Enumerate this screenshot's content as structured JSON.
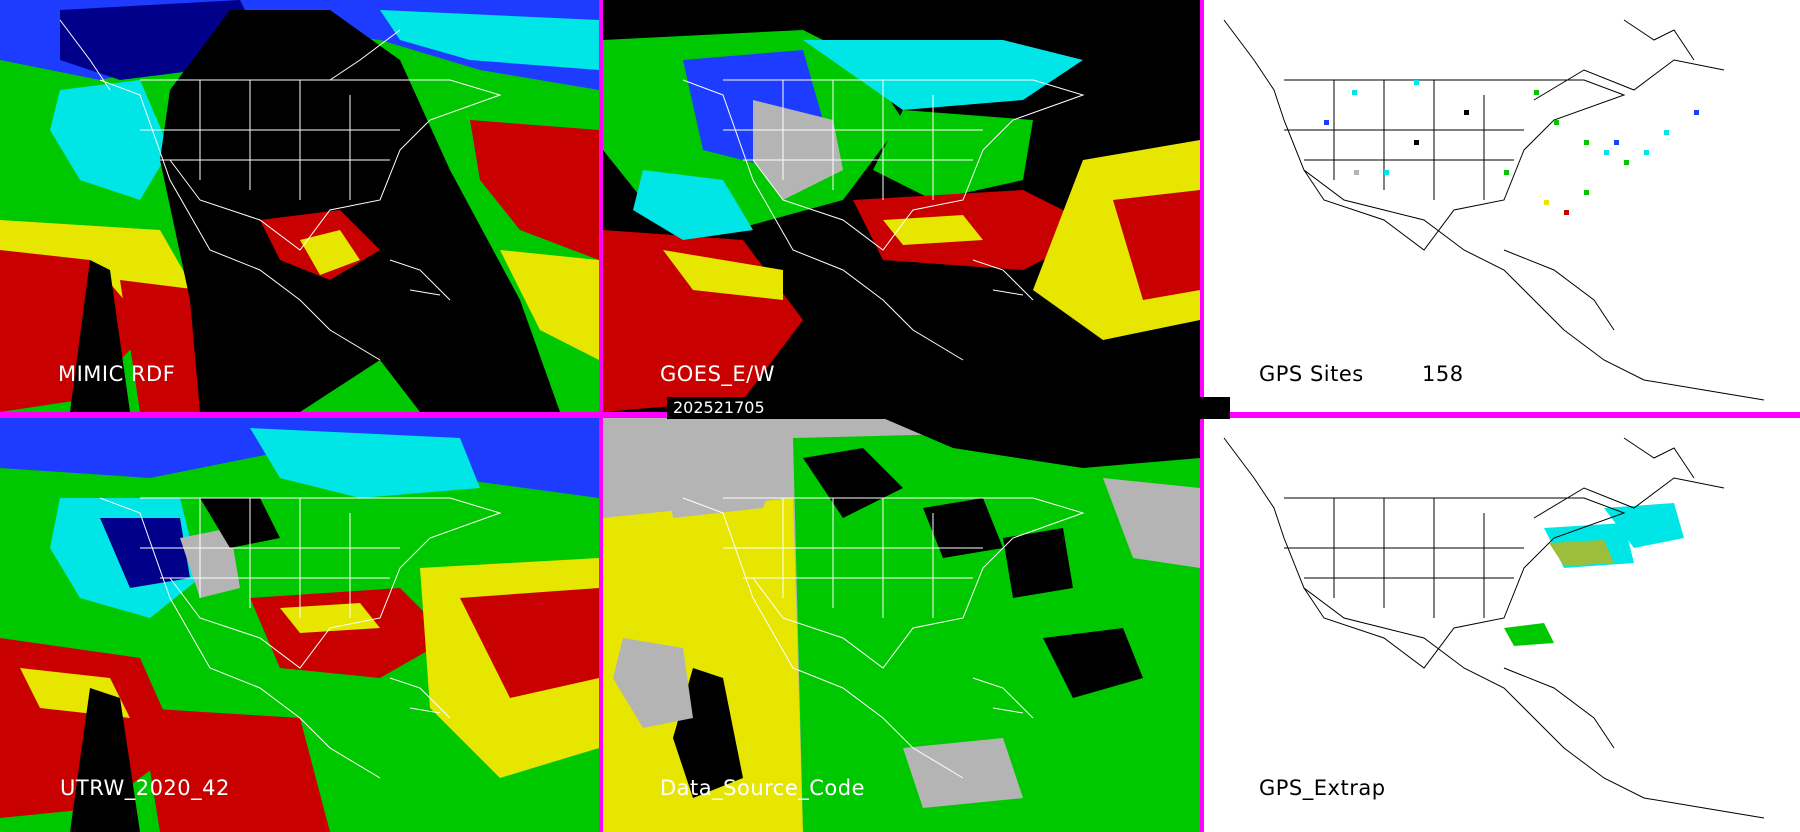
{
  "timestamp": "202521705",
  "panels": [
    {
      "id": "mimic",
      "label": "MIMIC RDF"
    },
    {
      "id": "goes",
      "label": "GOES_E/W"
    },
    {
      "id": "gps-sites",
      "label": "GPS Sites",
      "count": "158"
    },
    {
      "id": "utrw",
      "label": "UTRW_2020_42"
    },
    {
      "id": "dsc",
      "label": "Data_Source_Code"
    },
    {
      "id": "gps-extrap",
      "label": "GPS_Extrap"
    }
  ],
  "colors": {
    "divider": "#ff00ff",
    "background_dark": "#000000",
    "background_light": "#ffffff",
    "palette": [
      "#00008b",
      "#1e3cff",
      "#00e6e6",
      "#00c800",
      "#e6e600",
      "#c80000",
      "#b4b4b4"
    ]
  }
}
